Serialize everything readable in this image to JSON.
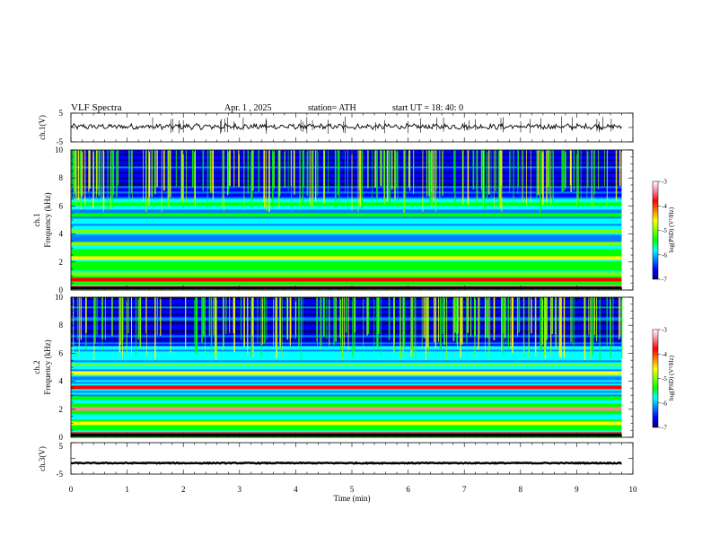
{
  "header": {
    "title": "VLF  Spectra",
    "date": "Apr. 1  , 2025",
    "station": "station= ATH",
    "start": "start  UT  =   18: 40: 0"
  },
  "chart_data": [
    {
      "type": "line",
      "name": "ch1-waveform",
      "ylabel": "ch.1(V)",
      "ylim": [
        -5,
        5
      ],
      "yticks": [
        "5",
        "-5"
      ],
      "xlim": [
        0,
        10
      ],
      "x_extent_min": [
        0,
        9.8
      ],
      "line_color": "#000000",
      "baseline_v": 0.3
    },
    {
      "type": "heatmap",
      "name": "ch1-spectrogram",
      "ylabel": "ch.1\nFrequency (kHz)",
      "ylabel_lines": [
        "ch.1",
        "Frequency (kHz)"
      ],
      "ylim": [
        0,
        10
      ],
      "yticks": [
        "0",
        "2",
        "4",
        "6",
        "8",
        "10"
      ],
      "xlim": [
        0,
        10
      ],
      "x_extent_min": [
        0,
        9.8
      ],
      "colorbar": {
        "label": "log(PSD) (V²/Hz)",
        "range": [
          -7,
          -3
        ],
        "ticks": [
          "-3",
          "-4",
          "-5",
          "-6",
          "-7"
        ]
      },
      "bands_khz": [
        {
          "f": 0.3,
          "level": -3.5
        },
        {
          "f": 0.8,
          "level": -3.9
        },
        {
          "f": 1.1,
          "level": -5.0
        },
        {
          "f": 2.3,
          "level": -4.4
        },
        {
          "f": 3.3,
          "level": -5.1
        },
        {
          "f": 4.2,
          "level": -5.2
        },
        {
          "f": 5.4,
          "level": -5.3
        },
        {
          "f": 6.2,
          "level": -5.6
        }
      ]
    },
    {
      "type": "heatmap",
      "name": "ch2-spectrogram",
      "ylabel": "ch.2\nFrequency (kHz)",
      "ylabel_lines": [
        "ch.2",
        "Frequency (kHz)"
      ],
      "ylim": [
        0,
        10
      ],
      "yticks": [
        "0",
        "2",
        "4",
        "6",
        "8",
        "10"
      ],
      "xlim": [
        0,
        10
      ],
      "x_extent_min": [
        0,
        9.8
      ],
      "colorbar": {
        "label": "log(PSD) (V²/Hz)",
        "range": [
          -7,
          -3
        ],
        "ticks": [
          "-3",
          "-4",
          "-5",
          "-6",
          "-7"
        ]
      },
      "bands_khz": [
        {
          "f": 0.3,
          "level": -3.8
        },
        {
          "f": 1.0,
          "level": -4.6
        },
        {
          "f": 2.0,
          "level": -3.6
        },
        {
          "f": 3.6,
          "level": -3.9
        },
        {
          "f": 4.6,
          "level": -4.4
        },
        {
          "f": 5.2,
          "level": -5.0
        }
      ]
    },
    {
      "type": "line",
      "name": "ch3-waveform",
      "ylabel": "ch.3(V)",
      "ylim": [
        -5,
        5
      ],
      "yticks": [
        "5",
        "-5"
      ],
      "xlim": [
        0,
        10
      ],
      "x_extent_min": [
        0,
        9.8
      ],
      "line_color": "#000000",
      "baseline_v": -1.5,
      "xlabel": "Time  (min)",
      "xticks": [
        "0",
        "1",
        "2",
        "3",
        "4",
        "5",
        "6",
        "7",
        "8",
        "9",
        "10"
      ]
    }
  ],
  "colorbar_palette": [
    "#000080",
    "#0000ff",
    "#0080ff",
    "#00ffff",
    "#00ff00",
    "#80ff00",
    "#ffff00",
    "#ff8000",
    "#ff0000",
    "#ff80a0",
    "#ffffff"
  ]
}
